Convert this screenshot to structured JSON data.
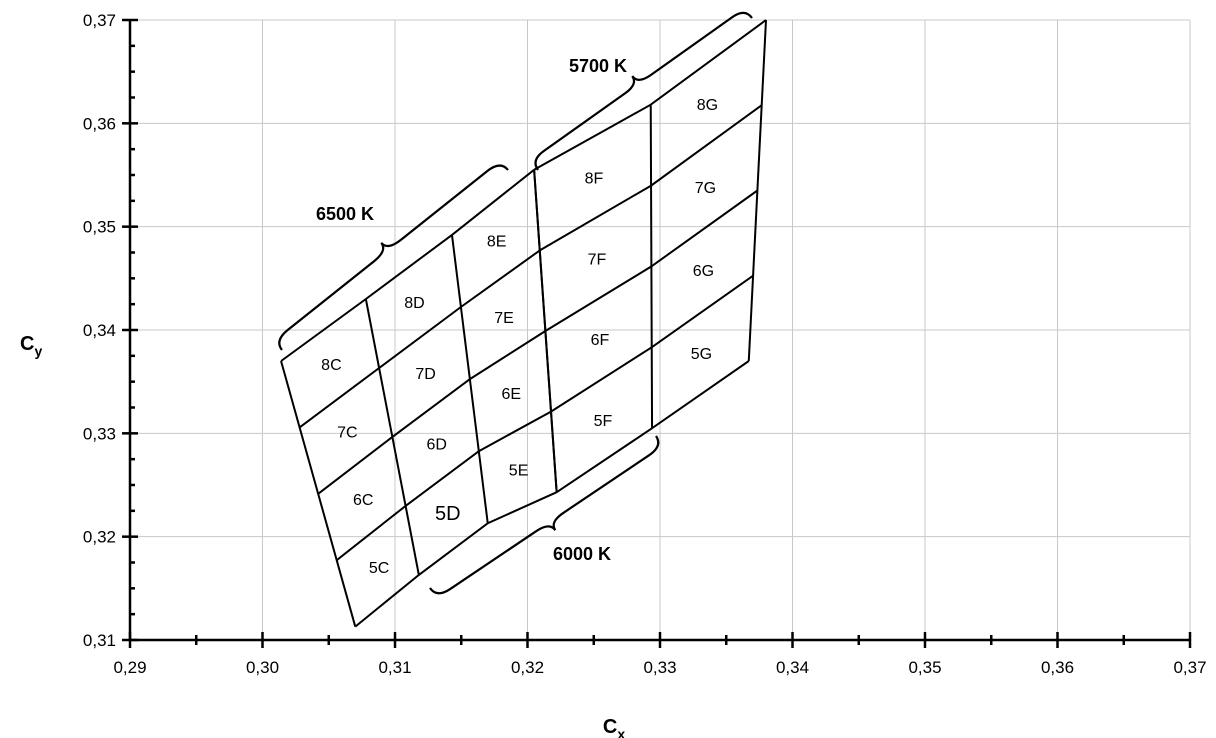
{
  "chart_data": {
    "type": "scatter",
    "title": "",
    "xlabel": "C",
    "xlabel_sub": "x",
    "ylabel": "C",
    "ylabel_sub": "y",
    "xlim": [
      0.29,
      0.37
    ],
    "ylim": [
      0.31,
      0.37
    ],
    "grid": true,
    "x_ticks": [
      "0,29",
      "0,30",
      "0,31",
      "0,32",
      "0,33",
      "0,34",
      "0,35",
      "0,36",
      "0,37"
    ],
    "y_ticks": [
      "0,31",
      "0,32",
      "0,33",
      "0,34",
      "0,35",
      "0,36",
      "0,37"
    ],
    "columns": [
      {
        "cct": "6500 K",
        "column_labels": [
          "C",
          "D",
          "E"
        ],
        "vertical_lines": [
          [
            [
              0.3014,
              0.337
            ],
            [
              0.307,
              0.3113
            ]
          ],
          [
            [
              0.3078,
              0.343
            ],
            [
              0.3118,
              0.3163
            ]
          ],
          [
            [
              0.3143,
              0.3492
            ],
            [
              0.317,
              0.3213
            ]
          ],
          [
            [
              0.3205,
              0.3555
            ],
            [
              0.3222,
              0.3243
            ]
          ]
        ],
        "rows": [
          "5",
          "6",
          "7",
          "8"
        ]
      },
      {
        "cct": "5700 K",
        "column_labels": [
          "F",
          "G"
        ],
        "vertical_lines": [
          [
            [
              0.3205,
              0.3555
            ],
            [
              0.3222,
              0.3243
            ]
          ],
          [
            [
              0.3293,
              0.3618
            ],
            [
              0.3294,
              0.3305
            ]
          ],
          [
            [
              0.338,
              0.37
            ],
            [
              0.3367,
              0.337
            ]
          ]
        ],
        "rows": [
          "5",
          "6",
          "7",
          "8"
        ]
      }
    ],
    "bins": [
      "5C",
      "6C",
      "7C",
      "8C",
      "5D",
      "6D",
      "7D",
      "8D",
      "5E",
      "6E",
      "7E",
      "8E",
      "5F",
      "6F",
      "7F",
      "8F",
      "5G",
      "6G",
      "7G",
      "8G"
    ],
    "cct_labels": [
      "6500 K",
      "5700 K",
      "6000 K"
    ]
  }
}
